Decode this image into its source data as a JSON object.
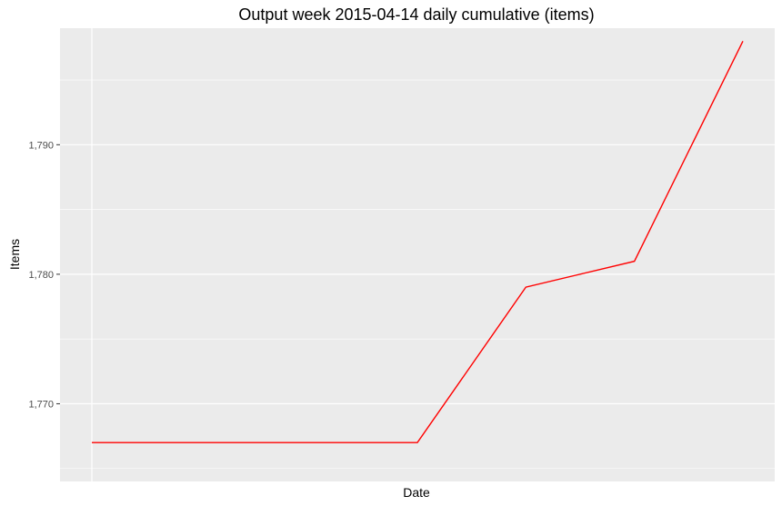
{
  "chart_data": {
    "type": "line",
    "title": "Output week 2015-04-14 daily cumulative (items)",
    "xlabel": "Date",
    "ylabel": "Items",
    "x_tick_labels": [],
    "ylim": [
      1764,
      1799
    ],
    "y_major_ticks": [
      1770,
      1780,
      1790
    ],
    "y_tick_labels": [
      "1,770",
      "1,780",
      "1,790"
    ],
    "y_minor_ticks": [
      1765,
      1775,
      1785,
      1795
    ],
    "grid": true,
    "series": [
      {
        "color": "#ff0000",
        "values": [
          1767,
          1767,
          1767,
          1767,
          1779,
          1781,
          1798
        ]
      }
    ]
  },
  "colors": {
    "panel_background": "#ebebeb",
    "grid_line": "#ffffff",
    "line": "#ff0000"
  }
}
